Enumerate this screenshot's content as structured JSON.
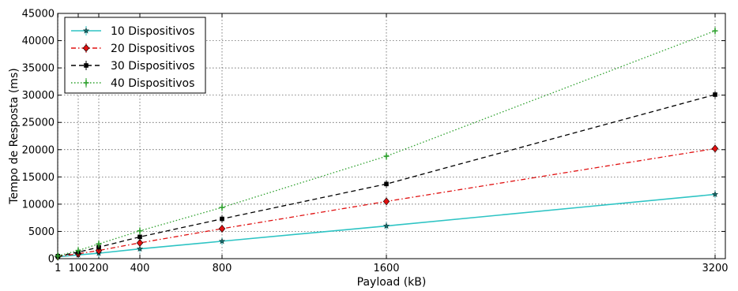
{
  "chart_data": {
    "type": "line",
    "title": "",
    "xlabel": "Payload (kB)",
    "ylabel": "Tempo de Resposta (ms)",
    "x": [
      1,
      100,
      200,
      400,
      800,
      1600,
      3200
    ],
    "x_tick_labels": [
      "1",
      "100",
      "200",
      "400",
      "800",
      "1600",
      "3200"
    ],
    "xlim": [
      0,
      3250
    ],
    "ylim": [
      0,
      45000
    ],
    "y_ticks": [
      0,
      5000,
      10000,
      15000,
      20000,
      25000,
      30000,
      35000,
      40000,
      45000
    ],
    "y_tick_labels": [
      "0",
      "5000",
      "10000",
      "15000",
      "20000",
      "25000",
      "30000",
      "35000",
      "40000",
      "45000"
    ],
    "grid": true,
    "legend_position": "top-left",
    "series": [
      {
        "name": "10 Dispositivos",
        "color": "#2ec4c4",
        "line": "solid",
        "marker": "star",
        "values": [
          350,
          700,
          1000,
          1800,
          3200,
          6000,
          11800
        ]
      },
      {
        "name": "20 Dispositivos",
        "color": "#e01010",
        "line": "dashdot",
        "marker": "diamond",
        "values": [
          400,
          900,
          1500,
          2900,
          5500,
          10500,
          20200
        ]
      },
      {
        "name": "30 Dispositivos",
        "color": "#000000",
        "line": "dashed",
        "marker": "square",
        "values": [
          450,
          1200,
          2100,
          4000,
          7300,
          13700,
          30100
        ]
      },
      {
        "name": "40 Dispositivos",
        "color": "#2ca02c",
        "line": "dotted",
        "marker": "plus",
        "values": [
          500,
          1500,
          2700,
          5100,
          9400,
          18800,
          41800
        ]
      }
    ]
  }
}
